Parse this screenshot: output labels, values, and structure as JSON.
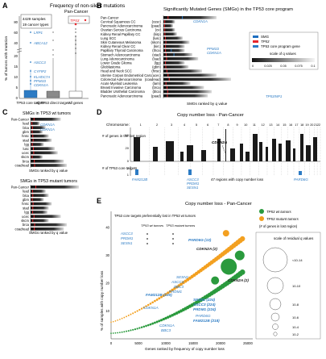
{
  "colors": {
    "tp53_core": "#e8262b",
    "core_program": "#2c7bc4",
    "smg": "#1e6fc0",
    "wt": "#2a9a3d",
    "mutant": "#f3a020",
    "bar_dark": "#1a1a1a",
    "grey": "#9a9a9a"
  },
  "panelA": {
    "letter": "A",
    "title": "Frequency of non-silent mutations",
    "subtitle": "Pan-Cancer",
    "ylabel": "% of tumors with mutation",
    "info_box": [
      "4429 samples",
      "19 cancer types"
    ],
    "legend_label": "TP53",
    "yticks": [
      "0",
      "5",
      "10",
      "15",
      "20",
      "40",
      "60",
      "80"
    ],
    "groups": [
      "TP53 core targets",
      "All TP53 direct targets",
      "All genes"
    ],
    "gene_labels": [
      "LRP1",
      "ABCA12",
      "ASCC3",
      "CYFIP2",
      "KLHDC7A",
      "PPM1D",
      "CDKN1A"
    ]
  },
  "panelB": {
    "letter": "B",
    "title": "Significantly Mutated Genes (SMGs) in the TP53 core program",
    "cancers": [
      {
        "name": "Pan-Cancer",
        "code": ""
      },
      {
        "name": "Cervical Squamous CC",
        "code": "(cesc)"
      },
      {
        "name": "Pancreatic Adenocarcinoma",
        "code": "(paad)"
      },
      {
        "name": "Ovarian Serous Carcinoma",
        "code": "(ov)"
      },
      {
        "name": "Kidney Renal Papillary CC",
        "code": "(kirp)"
      },
      {
        "name": "Lung SCC",
        "code": "(lusc)"
      },
      {
        "name": "Skin Cutaneous Melanoma",
        "code": "(skcm)"
      },
      {
        "name": "Kidney Renal Clear CC",
        "code": "(kirc)"
      },
      {
        "name": "Papillary Thyroid Carcinoma",
        "code": "(thca)"
      },
      {
        "name": "Stomach Adenocarcinoma",
        "code": "(stad)"
      },
      {
        "name": "Lung Adenocarcinoma",
        "code": "(luad)"
      },
      {
        "name": "Lower Grade Glioma",
        "code": "(lgg)"
      },
      {
        "name": "Glioblastoma",
        "code": "(gbm)"
      },
      {
        "name": "Head and Neck SCC",
        "code": "(hnsc)"
      },
      {
        "name": "Uterine Corpus Endometriod Carc.",
        "code": "(ucec)"
      },
      {
        "name": "Colorectal Adenocarcinoma",
        "code": "(coadread)"
      },
      {
        "name": "Acute Myeloid Leukemia",
        "code": "(laml)"
      },
      {
        "name": "Breast Invasive Carcinoma",
        "code": "(brca)"
      },
      {
        "name": "Bladder Urothelial Carcinoma",
        "code": "(blca)"
      },
      {
        "name": "Pancreatic Adenocarcinoma",
        "code": "(paad)"
      }
    ],
    "gene_labels": [
      "CDKN1A",
      "PPM1D",
      "CDKN1A",
      "TP53INP1"
    ],
    "legend_items": [
      "SMG",
      "TP53",
      "TP53 core program gene"
    ],
    "scale_title": "scale of q values",
    "scale_ticks": [
      "0",
      "0.025",
      "0.05",
      "0.075",
      "0.1"
    ],
    "xlabel": "SMGs ranked by q value"
  },
  "panelC": {
    "letter": "C",
    "title_wt": "SMGs in TP53 wt tumors",
    "title_mut": "SMGs in TP53 mutant tumors",
    "wt_rows": [
      "Pan-Cancer",
      "luad",
      "blca",
      "gbm",
      "hnsc",
      "stad",
      "lgg",
      "lusc",
      "ucec",
      "skcm",
      "brca",
      "coadread"
    ],
    "mut_rows": [
      "Pan-Cancer",
      "luad",
      "blca",
      "gbm",
      "hnsc",
      "stad",
      "lgg",
      "ucec",
      "skcm",
      "brca",
      "coadread"
    ],
    "wt_genes": [
      "CDKN1A",
      "CDKN1A"
    ],
    "xlabel": "SMGs ranked by q value"
  },
  "panelD": {
    "letter": "D",
    "title": "Copy number loss - Pan-Cancer",
    "chromosome_label": "Chromosome:",
    "chromosomes": [
      "1",
      "2",
      "3",
      "4",
      "5",
      "6",
      "7",
      "8",
      "9",
      "10",
      "11",
      "12",
      "13",
      "14",
      "15",
      "16",
      "17",
      "18",
      "19",
      "20",
      "21",
      "22"
    ],
    "ylabel_top": "# of genes in the lost region",
    "yticks_top": [
      "0",
      "20",
      "40"
    ],
    "ylabel_bottom": "# of TP53 core targets",
    "yticks_bottom": [
      "1",
      "2"
    ],
    "annotations": [
      "CDKN2A",
      "FAM212B",
      "ASCC3",
      "PRDM1",
      "SESN1",
      "PARD6G"
    ],
    "region_note": "47 regions with copy number loss"
  },
  "panelE": {
    "letter": "E",
    "title": "Copy number loss - Pan-Cancer",
    "xlabel": "Genes ranked by frequency of copy number loss",
    "ylabel": "% of samples with copy number loss",
    "xticks": [
      "0",
      "5000",
      "10000",
      "15000",
      "20000",
      "25000"
    ],
    "yticks": [
      "10",
      "20",
      "30",
      "40"
    ],
    "legend_title": "TP53 core targets preferentially lost in TP53 wt tumors",
    "legend_cols": [
      "TP53 wt tumors",
      "TP53 mutant tumors"
    ],
    "legend_genes": [
      "ASCC3",
      "PRDM1",
      "SESN1"
    ],
    "series_legend": [
      "TP53 wt tumors",
      "TP53 mutant tumors"
    ],
    "series_note": "(# of genes in lost region)",
    "scale_title": "scale of residual q values",
    "scale_ticks": [
      "<10-14",
      "10-10",
      "10-8",
      "10-6",
      "10-4",
      "10-2"
    ],
    "labels_mut": [
      "PARD6G (13)",
      "CDKN2A (2)",
      "SESN1",
      "ASCC3",
      "BBC3",
      "PRDM1",
      "FAM212B (130)",
      "CDKN1A"
    ],
    "labels_wt": [
      "CDKN2A (2)",
      "SESN1 (224)",
      "ASCC3 (224)",
      "PRDM1 (224)",
      "PARD6G",
      "FAM212B (218)",
      "CDKN1A",
      "BBC3"
    ]
  }
}
